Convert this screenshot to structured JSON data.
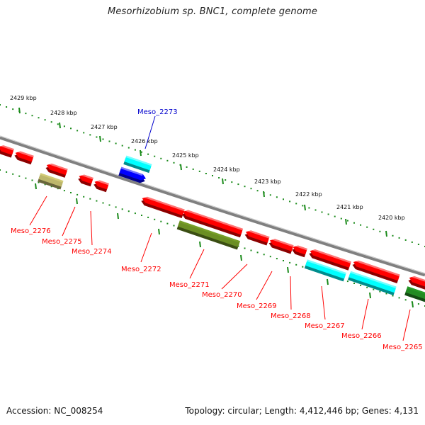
{
  "title": "Mesorhizobium sp. BNC1, complete genome",
  "footer": {
    "accession": "Accession: NC_008254",
    "topology": "Topology: circular; Length: 4,412,446 bp; Genes: 4,131"
  },
  "scale_labels": [
    "2429 kbp",
    "2428 kbp",
    "2427 kbp",
    "2426 kbp",
    "2425 kbp",
    "2424 kbp",
    "2423 kbp",
    "2422 kbp",
    "2421 kbp",
    "2420 kbp"
  ],
  "gene_labels": [
    "Meso_2273",
    "Meso_2276",
    "Meso_2275",
    "Meso_2274",
    "Meso_2272",
    "Meso_2271",
    "Meso_2270",
    "Meso_2269",
    "Meso_2268",
    "Meso_2267",
    "Meso_2266",
    "Meso_2265"
  ],
  "colors": {
    "backbone": "#808080",
    "scale_dots": "#1a8a1a",
    "gene_red": "#ff0000",
    "gene_cyan": "#00ffff",
    "gene_blue": "#0000ff",
    "gene_olive": "#6b8e23",
    "gene_khaki": "#bdb76b",
    "gene_green": "#228b22",
    "label_red": "#ff0000",
    "label_blue": "#0000cc"
  }
}
